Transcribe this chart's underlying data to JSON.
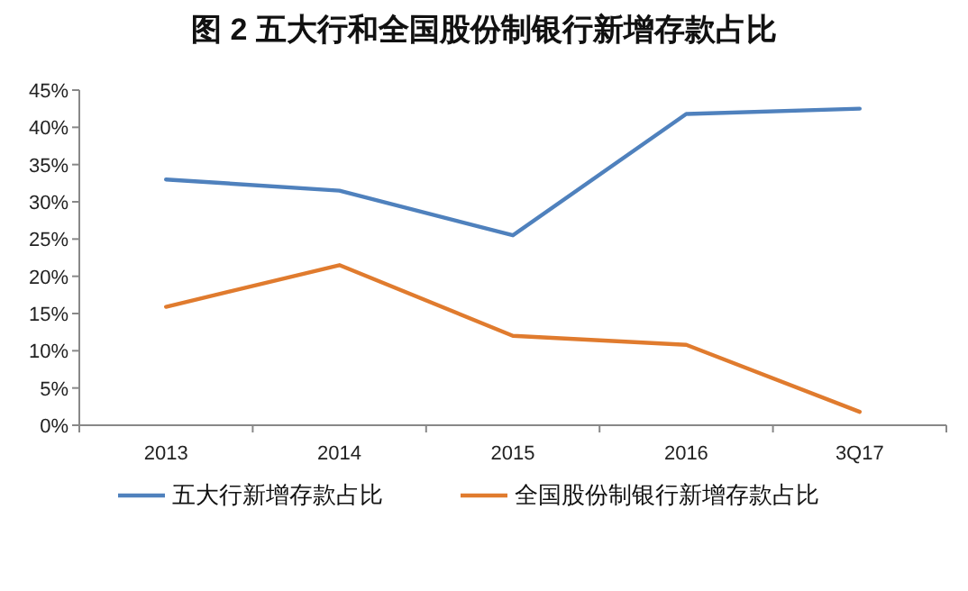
{
  "chart_data": {
    "type": "line",
    "title": "图 2  五大行和全国股份制银行新增存款占比",
    "categories": [
      "2013",
      "2014",
      "2015",
      "2016",
      "3Q17"
    ],
    "series": [
      {
        "name": "五大行新增存款占比",
        "color": "#4f81bd",
        "values": [
          33,
          31.5,
          25.5,
          41.8,
          42.5
        ]
      },
      {
        "name": "全国股份制银行新增存款占比",
        "color": "#e07b2e",
        "values": [
          15.9,
          21.5,
          12,
          10.8,
          1.8
        ]
      }
    ],
    "ylim": [
      0,
      45
    ],
    "yticks": [
      {
        "value": 0,
        "label": "0%"
      },
      {
        "value": 5,
        "label": "5%"
      },
      {
        "value": 10,
        "label": "10%"
      },
      {
        "value": 15,
        "label": "15%"
      },
      {
        "value": 20,
        "label": "20%"
      },
      {
        "value": 25,
        "label": "25%"
      },
      {
        "value": 30,
        "label": "30%"
      },
      {
        "value": 35,
        "label": "35%"
      },
      {
        "value": 40,
        "label": "40%"
      },
      {
        "value": 45,
        "label": "45%"
      }
    ],
    "grid": false,
    "legend": "bottom",
    "marker": "none",
    "line_style": "solid"
  }
}
